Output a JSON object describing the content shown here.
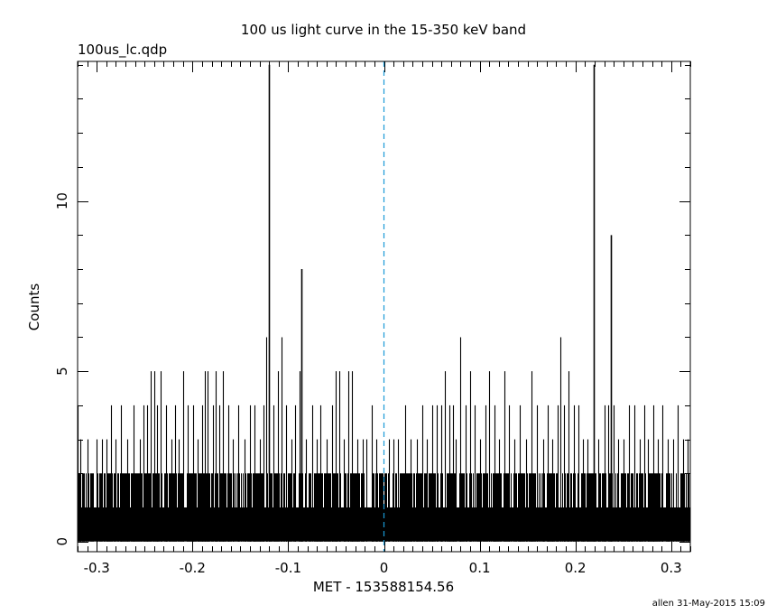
{
  "chart_data": {
    "type": "bar",
    "title": "100 us light curve in the 15-350 keV band",
    "subtitle": "100us_lc.qdp",
    "xlabel": "MET - 153588154.56",
    "ylabel": "Counts",
    "footer": "allen 31-May-2015 15:09",
    "xlim": [
      -0.32,
      0.32
    ],
    "ylim": [
      -0.3,
      14.1
    ],
    "x_ticks": [
      -0.3,
      -0.2,
      -0.1,
      0,
      0.1,
      0.2,
      0.3
    ],
    "x_tick_labels": [
      "-0.3",
      "-0.2",
      "-0.1",
      "0",
      "0.1",
      "0.2",
      "0.3"
    ],
    "y_ticks": [
      0,
      5,
      10
    ],
    "y_tick_labels": [
      "0",
      "5",
      "10"
    ],
    "reference_line": {
      "x": 0,
      "style": "dashed",
      "color": "#1a9ad6"
    },
    "bin_width": 0.0001,
    "baseline_level": 1,
    "baseline_note": "dense bins at 0-2 counts fill the band up to 1, with frequent spikes to 2",
    "spikes": [
      {
        "x": -0.32,
        "y": 4
      },
      {
        "x": -0.317,
        "y": 3
      },
      {
        "x": -0.31,
        "y": 3
      },
      {
        "x": -0.3,
        "y": 3
      },
      {
        "x": -0.295,
        "y": 3
      },
      {
        "x": -0.29,
        "y": 3
      },
      {
        "x": -0.285,
        "y": 4
      },
      {
        "x": -0.28,
        "y": 3
      },
      {
        "x": -0.275,
        "y": 4
      },
      {
        "x": -0.268,
        "y": 3
      },
      {
        "x": -0.262,
        "y": 4
      },
      {
        "x": -0.255,
        "y": 3
      },
      {
        "x": -0.251,
        "y": 4
      },
      {
        "x": -0.247,
        "y": 4
      },
      {
        "x": -0.244,
        "y": 5
      },
      {
        "x": -0.24,
        "y": 5
      },
      {
        "x": -0.237,
        "y": 4
      },
      {
        "x": -0.233,
        "y": 5
      },
      {
        "x": -0.228,
        "y": 4
      },
      {
        "x": -0.222,
        "y": 3
      },
      {
        "x": -0.218,
        "y": 4
      },
      {
        "x": -0.214,
        "y": 3
      },
      {
        "x": -0.21,
        "y": 5
      },
      {
        "x": -0.205,
        "y": 4
      },
      {
        "x": -0.199,
        "y": 4
      },
      {
        "x": -0.195,
        "y": 3
      },
      {
        "x": -0.19,
        "y": 4
      },
      {
        "x": -0.187,
        "y": 5
      },
      {
        "x": -0.184,
        "y": 5
      },
      {
        "x": -0.179,
        "y": 4
      },
      {
        "x": -0.176,
        "y": 5
      },
      {
        "x": -0.172,
        "y": 4
      },
      {
        "x": -0.168,
        "y": 5
      },
      {
        "x": -0.163,
        "y": 4
      },
      {
        "x": -0.158,
        "y": 3
      },
      {
        "x": -0.152,
        "y": 4
      },
      {
        "x": -0.146,
        "y": 3
      },
      {
        "x": -0.14,
        "y": 4
      },
      {
        "x": -0.135,
        "y": 4
      },
      {
        "x": -0.13,
        "y": 3
      },
      {
        "x": -0.126,
        "y": 4
      },
      {
        "x": -0.123,
        "y": 6
      },
      {
        "x": -0.12,
        "y": 14
      },
      {
        "x": -0.115,
        "y": 4
      },
      {
        "x": -0.111,
        "y": 5
      },
      {
        "x": -0.107,
        "y": 6
      },
      {
        "x": -0.102,
        "y": 4
      },
      {
        "x": -0.097,
        "y": 3
      },
      {
        "x": -0.093,
        "y": 4
      },
      {
        "x": -0.088,
        "y": 5
      },
      {
        "x": -0.086,
        "y": 8
      },
      {
        "x": -0.082,
        "y": 3
      },
      {
        "x": -0.075,
        "y": 4
      },
      {
        "x": -0.07,
        "y": 3
      },
      {
        "x": -0.066,
        "y": 4
      },
      {
        "x": -0.06,
        "y": 3
      },
      {
        "x": -0.054,
        "y": 4
      },
      {
        "x": -0.05,
        "y": 5
      },
      {
        "x": -0.047,
        "y": 5
      },
      {
        "x": -0.042,
        "y": 3
      },
      {
        "x": -0.037,
        "y": 5
      },
      {
        "x": -0.033,
        "y": 5
      },
      {
        "x": -0.028,
        "y": 3
      },
      {
        "x": -0.022,
        "y": 3
      },
      {
        "x": -0.018,
        "y": 3
      },
      {
        "x": -0.013,
        "y": 4
      },
      {
        "x": -0.008,
        "y": 3
      },
      {
        "x": 0.005,
        "y": 3
      },
      {
        "x": 0.01,
        "y": 3
      },
      {
        "x": 0.015,
        "y": 3
      },
      {
        "x": 0.022,
        "y": 4
      },
      {
        "x": 0.028,
        "y": 3
      },
      {
        "x": 0.034,
        "y": 3
      },
      {
        "x": 0.04,
        "y": 4
      },
      {
        "x": 0.045,
        "y": 3
      },
      {
        "x": 0.05,
        "y": 4
      },
      {
        "x": 0.055,
        "y": 4
      },
      {
        "x": 0.06,
        "y": 4
      },
      {
        "x": 0.064,
        "y": 5
      },
      {
        "x": 0.068,
        "y": 4
      },
      {
        "x": 0.072,
        "y": 4
      },
      {
        "x": 0.075,
        "y": 3
      },
      {
        "x": 0.08,
        "y": 6
      },
      {
        "x": 0.085,
        "y": 4
      },
      {
        "x": 0.09,
        "y": 5
      },
      {
        "x": 0.095,
        "y": 4
      },
      {
        "x": 0.1,
        "y": 3
      },
      {
        "x": 0.106,
        "y": 4
      },
      {
        "x": 0.11,
        "y": 5
      },
      {
        "x": 0.115,
        "y": 4
      },
      {
        "x": 0.12,
        "y": 3
      },
      {
        "x": 0.126,
        "y": 5
      },
      {
        "x": 0.131,
        "y": 4
      },
      {
        "x": 0.136,
        "y": 3
      },
      {
        "x": 0.142,
        "y": 4
      },
      {
        "x": 0.148,
        "y": 3
      },
      {
        "x": 0.154,
        "y": 5
      },
      {
        "x": 0.16,
        "y": 4
      },
      {
        "x": 0.166,
        "y": 3
      },
      {
        "x": 0.171,
        "y": 4
      },
      {
        "x": 0.176,
        "y": 3
      },
      {
        "x": 0.181,
        "y": 4
      },
      {
        "x": 0.184,
        "y": 6
      },
      {
        "x": 0.188,
        "y": 4
      },
      {
        "x": 0.193,
        "y": 5
      },
      {
        "x": 0.198,
        "y": 4
      },
      {
        "x": 0.203,
        "y": 4
      },
      {
        "x": 0.208,
        "y": 3
      },
      {
        "x": 0.213,
        "y": 3
      },
      {
        "x": 0.219,
        "y": 14
      },
      {
        "x": 0.224,
        "y": 3
      },
      {
        "x": 0.23,
        "y": 4
      },
      {
        "x": 0.234,
        "y": 4
      },
      {
        "x": 0.237,
        "y": 9
      },
      {
        "x": 0.24,
        "y": 4
      },
      {
        "x": 0.245,
        "y": 3
      },
      {
        "x": 0.25,
        "y": 3
      },
      {
        "x": 0.256,
        "y": 4
      },
      {
        "x": 0.262,
        "y": 4
      },
      {
        "x": 0.267,
        "y": 3
      },
      {
        "x": 0.272,
        "y": 4
      },
      {
        "x": 0.276,
        "y": 3
      },
      {
        "x": 0.281,
        "y": 4
      },
      {
        "x": 0.286,
        "y": 3
      },
      {
        "x": 0.291,
        "y": 4
      },
      {
        "x": 0.296,
        "y": 3
      },
      {
        "x": 0.302,
        "y": 3
      },
      {
        "x": 0.307,
        "y": 4
      },
      {
        "x": 0.312,
        "y": 3
      },
      {
        "x": 0.317,
        "y": 3
      }
    ]
  }
}
